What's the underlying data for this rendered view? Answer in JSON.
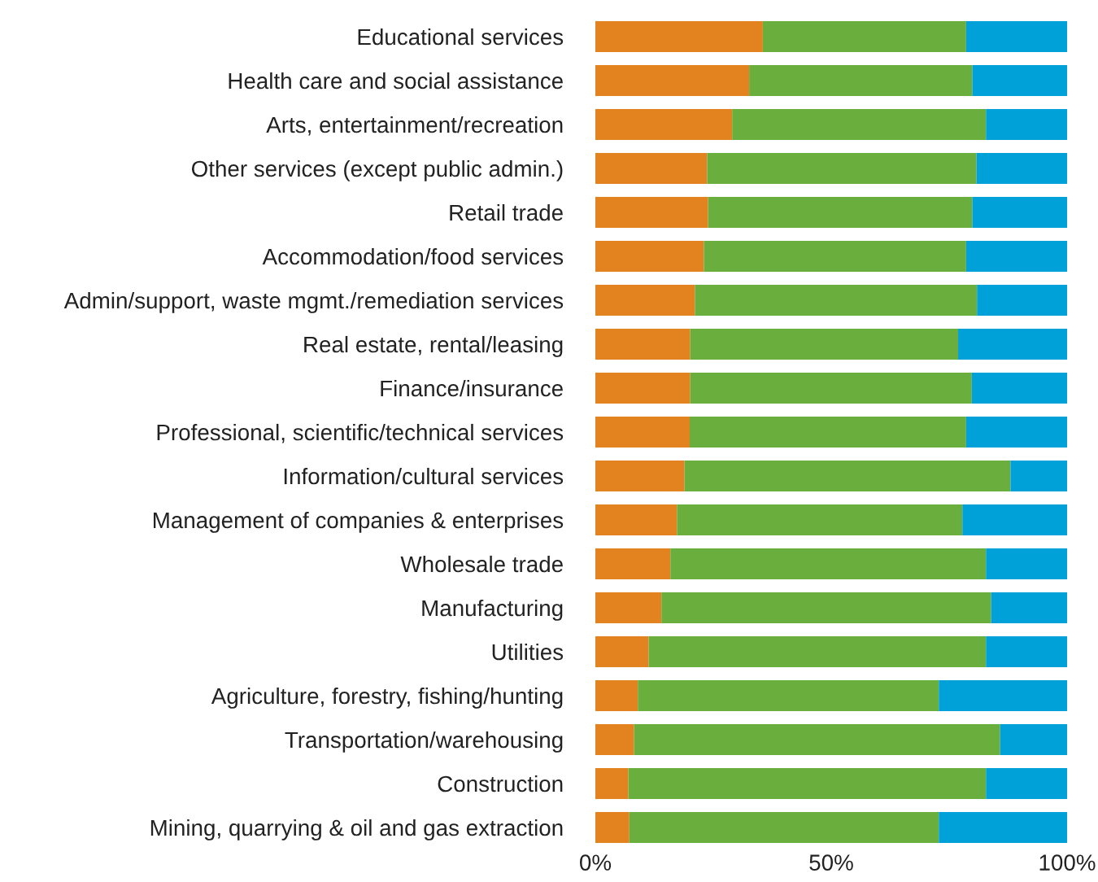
{
  "chart_data": {
    "type": "bar",
    "orientation": "horizontal",
    "stacked": true,
    "categories": [
      "Educational services",
      "Health care and social assistance",
      "Arts, entertainment/recreation",
      "Other services (except public admin.)",
      "Retail trade",
      "Accommodation/food services",
      "Admin/support, waste mgmt./remediation services",
      "Real estate, rental/leasing",
      "Finance/insurance",
      "Professional, scientific/technical services",
      "Information/cultural services",
      "Management of companies & enterprises",
      "Wholesale trade",
      "Manufacturing",
      "Utilities",
      "Agriculture, forestry, fishing/hunting",
      "Transportation/warehousing",
      "Construction",
      "Mining, quarrying & oil and gas extraction"
    ],
    "series": [
      {
        "color": "#e2831f",
        "values": [
          35.5,
          32.6,
          29.0,
          23.7,
          23.9,
          23.0,
          21.1,
          20.1,
          20.1,
          20.0,
          18.9,
          17.3,
          15.9,
          14.0,
          11.3,
          9.0,
          8.2,
          7.0,
          7.2
        ]
      },
      {
        "color": "#6aaf3d",
        "values": [
          43.1,
          47.3,
          53.8,
          57.1,
          56.0,
          55.6,
          59.8,
          56.8,
          59.7,
          58.6,
          69.1,
          60.5,
          66.9,
          69.9,
          71.5,
          63.8,
          77.6,
          75.8,
          65.6
        ]
      },
      {
        "color": "#00a0d8",
        "values": [
          21.4,
          20.1,
          17.2,
          19.2,
          20.1,
          21.4,
          19.1,
          23.1,
          20.2,
          21.4,
          12.0,
          22.2,
          17.2,
          16.1,
          17.2,
          27.2,
          14.2,
          17.2,
          27.2
        ]
      }
    ],
    "xlim": [
      0,
      100
    ],
    "xticks": [
      {
        "value": 0,
        "label": "0%"
      },
      {
        "value": 50,
        "label": "50%"
      },
      {
        "value": 100,
        "label": "100%"
      }
    ],
    "grid": false,
    "legend": false
  }
}
